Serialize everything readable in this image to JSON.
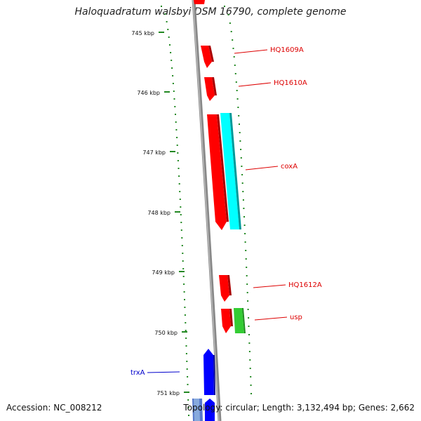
{
  "map": {
    "title": "Haloquadratum walsbyi DSM 16790, complete genome",
    "accession": "Accession: NC_008212",
    "summary": "Topology: circular; Length: 3,132,494 bp; Genes: 2,662",
    "ticks": [
      "745 kbp",
      "746 kbp",
      "747 kbp",
      "748 kbp",
      "749 kbp",
      "750 kbp",
      "751 kbp"
    ],
    "genes": [
      {
        "label": "HQ1609A",
        "strand": "forward",
        "color": "#ff0000"
      },
      {
        "label": "HQ1610A",
        "strand": "forward",
        "color": "#ff0000"
      },
      {
        "label": "coxA",
        "strand": "forward",
        "color": "#ff0000"
      },
      {
        "label": "",
        "strand": "forward",
        "color": "#00ffff"
      },
      {
        "label": "HQ1612A",
        "strand": "forward",
        "color": "#ff0000"
      },
      {
        "label": "usp",
        "strand": "forward",
        "color": "#ff0000"
      },
      {
        "label": "",
        "strand": "forward",
        "color": "#33cc33"
      },
      {
        "label": "trxA",
        "strand": "reverse",
        "color": "#0000ff"
      }
    ],
    "colors": {
      "forward_label": "#dd0000",
      "reverse_label": "#0000cc",
      "backbone": "#888888",
      "gc_dots": "#228822"
    }
  }
}
